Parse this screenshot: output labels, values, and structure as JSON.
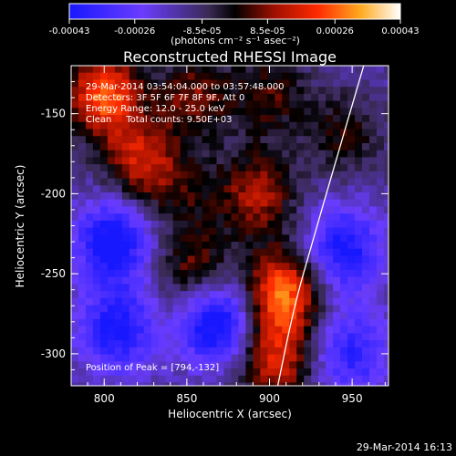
{
  "chart_data": {
    "type": "heatmap",
    "title": "Reconstructed RHESSI Image",
    "xlabel": "Heliocentric X (arcsec)",
    "ylabel": "Heliocentric Y (arcsec)",
    "xlim": [
      780,
      972
    ],
    "ylim": [
      -320,
      -120
    ],
    "x_ticks": [
      "800",
      "850",
      "900",
      "950"
    ],
    "y_ticks": [
      "-150",
      "-200",
      "-250",
      "-300"
    ],
    "colorbar": {
      "ticks": [
        "-0.00043",
        "-0.00026",
        "-8.5e-05",
        "8.5e-05",
        "0.00026",
        "0.00043"
      ],
      "unit": "(photons cm⁻² s⁻¹ asec⁻²)",
      "range": [
        -0.00043,
        0.00043
      ]
    },
    "annotations": {
      "time": "29-Mar-2014 03:54:04.000 to 03:57:48.000",
      "detectors": "Detectors: 3F 5F 6F 7F 8F 9F, Att 0",
      "energy": "Energy Range: 12.0 - 25.0 keV",
      "clean": "Clean     Total counts: 9.50E+03",
      "peak": "Position of Peak = [794,-132]"
    },
    "sources": [
      {
        "x": 800,
        "y": -138,
        "value": 0.0004
      },
      {
        "x": 822,
        "y": -180,
        "value": 0.00028
      },
      {
        "x": 855,
        "y": -140,
        "value": 0.00022
      },
      {
        "x": 900,
        "y": -138,
        "value": 0.00018
      },
      {
        "x": 850,
        "y": -200,
        "value": 0.00012
      },
      {
        "x": 893,
        "y": -200,
        "value": 0.00026
      },
      {
        "x": 855,
        "y": -248,
        "value": 0.00022
      },
      {
        "x": 908,
        "y": -262,
        "value": 0.00042
      },
      {
        "x": 903,
        "y": -305,
        "value": 0.0003
      },
      {
        "x": 945,
        "y": -163,
        "value": 0.00016
      },
      {
        "x": 805,
        "y": -230,
        "value": -0.00034
      },
      {
        "x": 808,
        "y": -285,
        "value": -0.0003
      },
      {
        "x": 868,
        "y": -280,
        "value": -0.00038
      },
      {
        "x": 945,
        "y": -235,
        "value": -0.0003
      },
      {
        "x": 950,
        "y": -300,
        "value": -0.00024
      }
    ],
    "limb_curve": [
      [
        957,
        -120
      ],
      [
        940,
        -180
      ],
      [
        926,
        -230
      ],
      [
        915,
        -270
      ],
      [
        905,
        -320
      ]
    ]
  },
  "footer": {
    "timestamp": "29-Mar-2014 16:13"
  }
}
